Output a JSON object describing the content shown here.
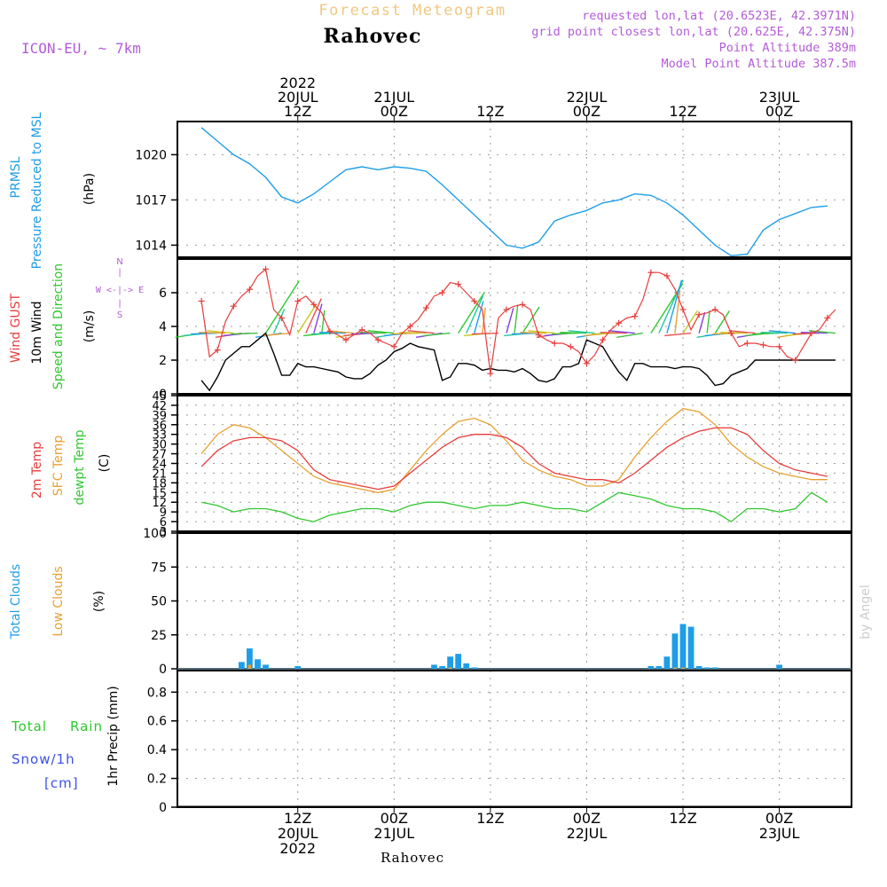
{
  "header": {
    "product_title": "Forecast Meteogram",
    "location": "Rahovec",
    "model": "ICON-EU, ~ 7km",
    "info": [
      "requested lon,lat (20.6523E, 42.3971N)",
      "grid point closest lon,lat (20.625E, 42.375N)",
      "Point Altitude 389m",
      "Model Point Altitude 387.5m"
    ],
    "footer_location": "Rahovec",
    "watermark": "by Angel"
  },
  "colors": {
    "pressure": "#1e9ee8",
    "gust": "#e83c3c",
    "wind": "#000000",
    "wind_dir": "#2ec82e",
    "temp": "#e83c3c",
    "sfc_temp": "#e8a030",
    "dewpt": "#2ec82e",
    "total_clouds": "#1e9ee8",
    "low_clouds": "#e8a030",
    "rain": "#2ec82e",
    "snow": "#3c50e8",
    "labels_purple": "#b45cd8",
    "title_orange": "#f0c880"
  },
  "time_axis": {
    "top": [
      {
        "label": [
          "2022",
          "20JUL",
          "12Z"
        ]
      },
      {
        "label": [
          "21JUL",
          "00Z"
        ]
      },
      {
        "label": [
          "12Z"
        ]
      },
      {
        "label": [
          "22JUL",
          "00Z"
        ]
      },
      {
        "label": [
          "12Z"
        ]
      },
      {
        "label": [
          "23JUL",
          "00Z"
        ]
      }
    ],
    "bottom": [
      {
        "label": [
          "12Z",
          "20JUL",
          "2022"
        ]
      },
      {
        "label": [
          "00Z",
          "21JUL"
        ]
      },
      {
        "label": [
          "12Z"
        ]
      },
      {
        "label": [
          "00Z",
          "22JUL"
        ]
      },
      {
        "label": [
          "12Z"
        ]
      },
      {
        "label": [
          "00Z",
          "23JUL"
        ]
      }
    ],
    "tick_hours": [
      12,
      24,
      36,
      48,
      60,
      72
    ]
  },
  "compass": {
    "n": "N",
    "s": "S",
    "w": "W",
    "e": "E"
  },
  "chart_data": [
    {
      "type": "line",
      "panel": "pressure",
      "side_labels": [
        "PRMSL",
        "Pressure Reduced to MSL"
      ],
      "ylabel": "(hPa)",
      "yticks": [
        1014,
        1017,
        1020
      ],
      "ylim": [
        1013.2,
        1022.2
      ],
      "series": [
        {
          "name": "PRMSL",
          "x": [
            0,
            2,
            4,
            6,
            8,
            10,
            12,
            14,
            16,
            18,
            20,
            22,
            24,
            26,
            28,
            30,
            32,
            34,
            36,
            38,
            40,
            42,
            44,
            46,
            48,
            50,
            52,
            54,
            56,
            58,
            60,
            62,
            64,
            66,
            68,
            70,
            72,
            74,
            76,
            78
          ],
          "values": [
            1021.8,
            1020.9,
            1020.0,
            1019.4,
            1018.5,
            1017.2,
            1016.8,
            1017.4,
            1018.2,
            1019.0,
            1019.2,
            1019.0,
            1019.2,
            1019.1,
            1018.9,
            1018.0,
            1017.0,
            1016.0,
            1015.0,
            1014.0,
            1013.8,
            1014.2,
            1015.6,
            1016.0,
            1016.3,
            1016.8,
            1017.0,
            1017.4,
            1017.3,
            1016.8,
            1016.0,
            1015.0,
            1014.0,
            1013.3,
            1013.4,
            1015.0,
            1015.7,
            1016.1,
            1016.5,
            1016.6
          ]
        }
      ]
    },
    {
      "type": "line",
      "panel": "wind",
      "side_labels": [
        "Wind GUST",
        "10m Wind",
        "Speed and Direction"
      ],
      "ylabel": "(m/s)",
      "yticks": [
        0,
        2,
        4,
        6
      ],
      "ylim": [
        0,
        8
      ],
      "series": [
        {
          "name": "Wind GUST",
          "x": [
            0,
            1,
            2,
            3,
            4,
            5,
            6,
            7,
            8,
            9,
            10,
            11,
            12,
            13,
            14,
            15,
            16,
            17,
            18,
            19,
            20,
            21,
            22,
            23,
            24,
            25,
            26,
            27,
            28,
            29,
            30,
            31,
            32,
            33,
            34,
            35,
            36,
            37,
            38,
            39,
            40,
            41,
            42,
            43,
            44,
            45,
            46,
            47,
            48,
            49,
            50,
            51,
            52,
            53,
            54,
            55,
            56,
            57,
            58,
            59,
            60,
            61,
            62,
            63,
            64,
            65,
            66,
            67,
            68,
            69,
            70,
            71,
            72,
            73,
            74,
            75,
            76,
            77,
            78,
            79
          ],
          "values": [
            5.5,
            2.2,
            2.6,
            4.3,
            5.2,
            5.8,
            6.2,
            7.0,
            7.4,
            5.0,
            4.5,
            3.5,
            5.5,
            5.8,
            5.3,
            4.8,
            3.7,
            3.5,
            3.2,
            3.5,
            3.8,
            3.6,
            3.2,
            3.0,
            2.8,
            3.6,
            4.0,
            4.4,
            5.1,
            5.8,
            6.0,
            6.6,
            6.5,
            6.0,
            5.5,
            5.0,
            1.2,
            4.5,
            5.0,
            5.2,
            5.3,
            5.0,
            3.5,
            3.2,
            3.0,
            3.0,
            2.8,
            2.5,
            1.8,
            2.3,
            3.2,
            3.8,
            4.2,
            4.5,
            4.6,
            5.6,
            7.2,
            7.2,
            7.0,
            6.2,
            5.0,
            3.8,
            4.7,
            4.8,
            5.0,
            4.7,
            3.6,
            2.8,
            3.0,
            3.0,
            2.9,
            2.8,
            2.8,
            2.2,
            2.0,
            2.8,
            3.6,
            3.8,
            4.5,
            5.0
          ]
        },
        {
          "name": "10m Wind",
          "x": [
            0,
            1,
            2,
            3,
            4,
            5,
            6,
            7,
            8,
            9,
            10,
            11,
            12,
            13,
            14,
            15,
            16,
            17,
            18,
            19,
            20,
            21,
            22,
            23,
            24,
            25,
            26,
            27,
            28,
            29,
            30,
            31,
            32,
            33,
            34,
            35,
            36,
            37,
            38,
            39,
            40,
            41,
            42,
            43,
            44,
            45,
            46,
            47,
            48,
            49,
            50,
            51,
            52,
            53,
            54,
            55,
            56,
            57,
            58,
            59,
            60,
            61,
            62,
            63,
            64,
            65,
            66,
            67,
            68,
            69,
            70,
            71,
            72,
            73,
            74,
            75,
            76,
            77,
            78,
            79
          ],
          "values": [
            0.8,
            0.2,
            1.0,
            2.0,
            2.4,
            2.8,
            2.8,
            3.2,
            3.6,
            2.4,
            1.1,
            1.1,
            1.8,
            1.6,
            1.6,
            1.5,
            1.4,
            1.3,
            1.0,
            0.9,
            0.9,
            1.2,
            1.7,
            2.0,
            2.5,
            2.7,
            3.0,
            2.8,
            2.7,
            2.6,
            0.8,
            1.0,
            1.8,
            1.8,
            1.7,
            1.4,
            1.5,
            1.4,
            1.4,
            1.3,
            1.5,
            1.2,
            0.8,
            0.7,
            0.9,
            1.6,
            1.6,
            1.8,
            3.2,
            3.0,
            2.8,
            2.0,
            1.3,
            0.8,
            1.8,
            1.8,
            1.6,
            1.6,
            1.6,
            1.5,
            1.6,
            1.6,
            1.5,
            1.1,
            0.5,
            0.6,
            1.1,
            1.3,
            1.5,
            2.0,
            2.0,
            2.0,
            2.0,
            2.0,
            2.0,
            2.0,
            2.0,
            2.0,
            2.0,
            2.0
          ]
        }
      ]
    },
    {
      "type": "line",
      "panel": "temperature",
      "side_labels": [
        "2m Temp",
        "SFC Temp",
        "dewpt Temp"
      ],
      "ylabel": "(C)",
      "yticks": [
        3,
        6,
        9,
        12,
        15,
        18,
        21,
        24,
        27,
        30,
        33,
        36,
        39,
        42,
        45
      ],
      "ylim": [
        3,
        45
      ],
      "series": [
        {
          "name": "2m Temp",
          "x": [
            0,
            2,
            4,
            6,
            8,
            10,
            12,
            14,
            16,
            18,
            20,
            22,
            24,
            26,
            28,
            30,
            32,
            34,
            36,
            38,
            40,
            42,
            44,
            46,
            48,
            50,
            52,
            54,
            56,
            58,
            60,
            62,
            64,
            66,
            68,
            70,
            72,
            74,
            76,
            78
          ],
          "values": [
            23,
            28,
            31,
            32,
            32,
            31,
            28,
            22,
            19,
            18,
            17,
            16,
            17,
            21,
            25,
            29,
            32,
            33,
            33,
            32,
            29,
            24,
            21,
            20,
            19,
            19,
            18,
            21,
            25,
            29,
            32,
            34,
            35,
            35,
            33,
            28,
            24,
            22,
            21,
            20
          ]
        },
        {
          "name": "SFC Temp",
          "x": [
            0,
            2,
            4,
            6,
            8,
            10,
            12,
            14,
            16,
            18,
            20,
            22,
            24,
            26,
            28,
            30,
            32,
            34,
            36,
            38,
            40,
            42,
            44,
            46,
            48,
            50,
            52,
            54,
            56,
            58,
            60,
            62,
            64,
            66,
            68,
            70,
            72,
            74,
            76,
            78
          ],
          "values": [
            27,
            33,
            36,
            35,
            32,
            28,
            24,
            20,
            18,
            17,
            16,
            15,
            16,
            22,
            28,
            33,
            37,
            38,
            36,
            31,
            25,
            22,
            20,
            19,
            17,
            17,
            19,
            26,
            32,
            37,
            41,
            40,
            36,
            30,
            26,
            23,
            21,
            20,
            19,
            19
          ]
        },
        {
          "name": "dewpt Temp",
          "x": [
            0,
            2,
            4,
            6,
            8,
            10,
            12,
            14,
            16,
            18,
            20,
            22,
            24,
            26,
            28,
            30,
            32,
            34,
            36,
            38,
            40,
            42,
            44,
            46,
            48,
            50,
            52,
            54,
            56,
            58,
            60,
            62,
            64,
            66,
            68,
            70,
            72,
            74,
            76,
            78
          ],
          "values": [
            12,
            11,
            9,
            10,
            10,
            9,
            7,
            6,
            8,
            9,
            10,
            10,
            9,
            11,
            12,
            12,
            11,
            10,
            11,
            11,
            12,
            11,
            10,
            10,
            9,
            12,
            15,
            14,
            13,
            11,
            10,
            10,
            9,
            6,
            10,
            10,
            9,
            10,
            15,
            12
          ]
        }
      ]
    },
    {
      "type": "bar",
      "panel": "clouds",
      "side_labels": [
        "Total Clouds",
        "Low Clouds"
      ],
      "ylabel": "(%)",
      "yticks": [
        0,
        25,
        50,
        75,
        100
      ],
      "ylim": [
        0,
        100
      ],
      "series": [
        {
          "name": "Total Clouds",
          "x": [
            5,
            6,
            7,
            8,
            12,
            29,
            30,
            31,
            32,
            33,
            34,
            56,
            57,
            58,
            59,
            60,
            61,
            62,
            63,
            64,
            72
          ],
          "values": [
            5,
            15,
            7,
            3,
            2,
            3,
            2,
            9,
            11,
            4,
            1,
            2,
            2,
            9,
            26,
            33,
            31,
            2,
            1,
            1,
            3
          ]
        },
        {
          "name": "Low Clouds",
          "x": [
            6,
            31,
            59,
            60
          ],
          "values": [
            3,
            1,
            1,
            1
          ]
        }
      ]
    },
    {
      "type": "bar",
      "panel": "precip",
      "side_labels": [
        "Total Rain",
        "Snow/1h",
        "[cm]"
      ],
      "ylabel": "1hr Precip (mm)",
      "yticks": [
        0,
        0.2,
        0.4,
        0.6,
        0.8
      ],
      "ylim": [
        0,
        0.95
      ],
      "series": []
    }
  ]
}
